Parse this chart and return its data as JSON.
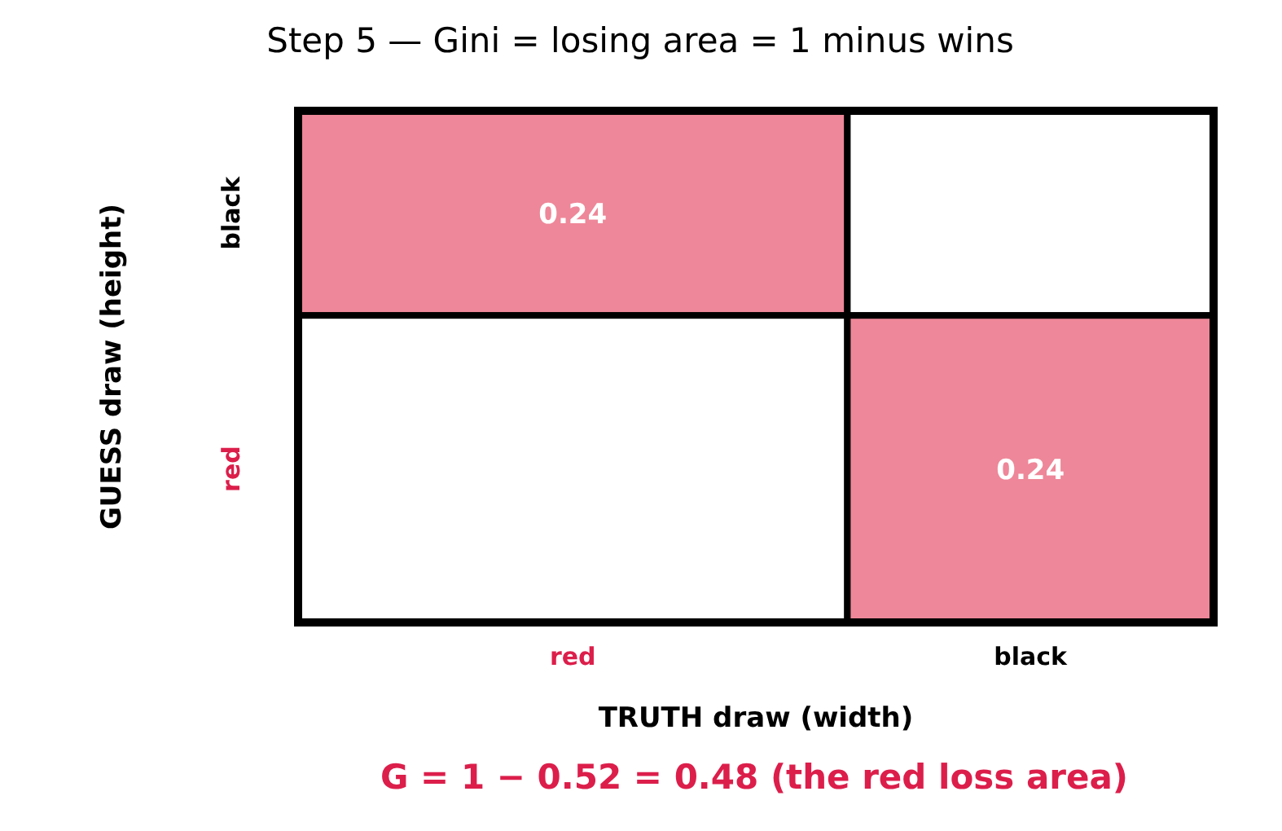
{
  "chart_data": {
    "type": "heatmap",
    "title": "Step 5 — Gini = losing area = 1 minus wins",
    "xlabel": "TRUTH draw (width)",
    "ylabel": "GUESS draw (height)",
    "categories": [
      "red",
      "black"
    ],
    "y_categories": [
      "black",
      "red"
    ],
    "cells": [
      [
        0.24,
        null
      ],
      [
        null,
        0.24
      ]
    ],
    "color": "#ee8799",
    "data_labels": true,
    "annotations": [
      "G = 1 − 0.52 = 0.48  (the red loss area)"
    ]
  }
}
